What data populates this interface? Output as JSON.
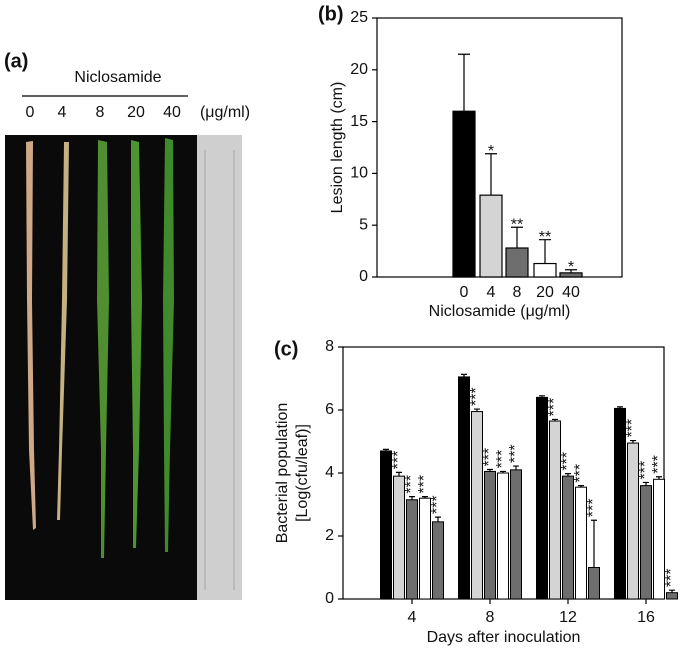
{
  "panel_a": {
    "label": "(a)",
    "treatment": "Niclosamide",
    "doses": [
      "0",
      "4",
      "8",
      "20",
      "40"
    ],
    "unit": "(μg/ml)"
  },
  "chart_data": [
    {
      "type": "bar",
      "panel_label": "(b)",
      "ylabel": "Lesion length (cm)",
      "xlabel": "Niclosamide (μg/ml)",
      "categories": [
        "0",
        "4",
        "8",
        "20",
        "40"
      ],
      "values": [
        16,
        7.9,
        2.8,
        1.3,
        0.4
      ],
      "errors": [
        5.5,
        4,
        2,
        2.3,
        0.3
      ],
      "significance": [
        null,
        "*",
        "**",
        "**",
        "*"
      ],
      "colors": [
        "#000000",
        "#d4d4d4",
        "#6e6e6e",
        "#ffffff",
        "#6e6e6e"
      ],
      "ylim": [
        0,
        25
      ],
      "yticks": [
        0,
        5,
        10,
        15,
        20,
        25
      ],
      "grid": false
    },
    {
      "type": "grouped_bar",
      "panel_label": "(c)",
      "ylabel": [
        "Bacterial population",
        "[Log(cfu/leaf)]"
      ],
      "xlabel": "Days after inoculation",
      "categories": [
        "4",
        "8",
        "12",
        "16"
      ],
      "series": [
        {
          "color": "#000000",
          "values": [
            4.7,
            7.05,
            6.4,
            6.05
          ],
          "errors": [
            0.05,
            0.08,
            0.05,
            0.05
          ],
          "significance": [
            null,
            null,
            null,
            null
          ]
        },
        {
          "color": "#d4d4d4",
          "values": [
            3.9,
            5.95,
            5.65,
            4.95
          ],
          "errors": [
            0.12,
            0.08,
            0.05,
            0.08
          ],
          "significance": [
            "***",
            "***",
            "***",
            "***"
          ]
        },
        {
          "color": "#6e6e6e",
          "values": [
            3.15,
            4.05,
            3.9,
            3.6
          ],
          "errors": [
            0.1,
            0.06,
            0.08,
            0.1
          ],
          "significance": [
            "***",
            "***",
            "***",
            "***"
          ]
        },
        {
          "color": "#ffffff",
          "values": [
            3.2,
            4.0,
            3.55,
            3.8
          ],
          "errors": [
            0.05,
            0.05,
            0.05,
            0.08
          ],
          "significance": [
            "***",
            "***",
            "***",
            "***"
          ]
        },
        {
          "color": "#6e6e6e",
          "values": [
            2.45,
            4.1,
            1.0,
            0.2
          ],
          "errors": [
            0.15,
            0.12,
            1.5,
            0.08
          ],
          "significance": [
            "***",
            "***",
            "***",
            "***"
          ]
        }
      ],
      "ylim": [
        0,
        8
      ],
      "yticks": [
        0,
        2,
        4,
        6,
        8
      ],
      "grid": false
    }
  ]
}
